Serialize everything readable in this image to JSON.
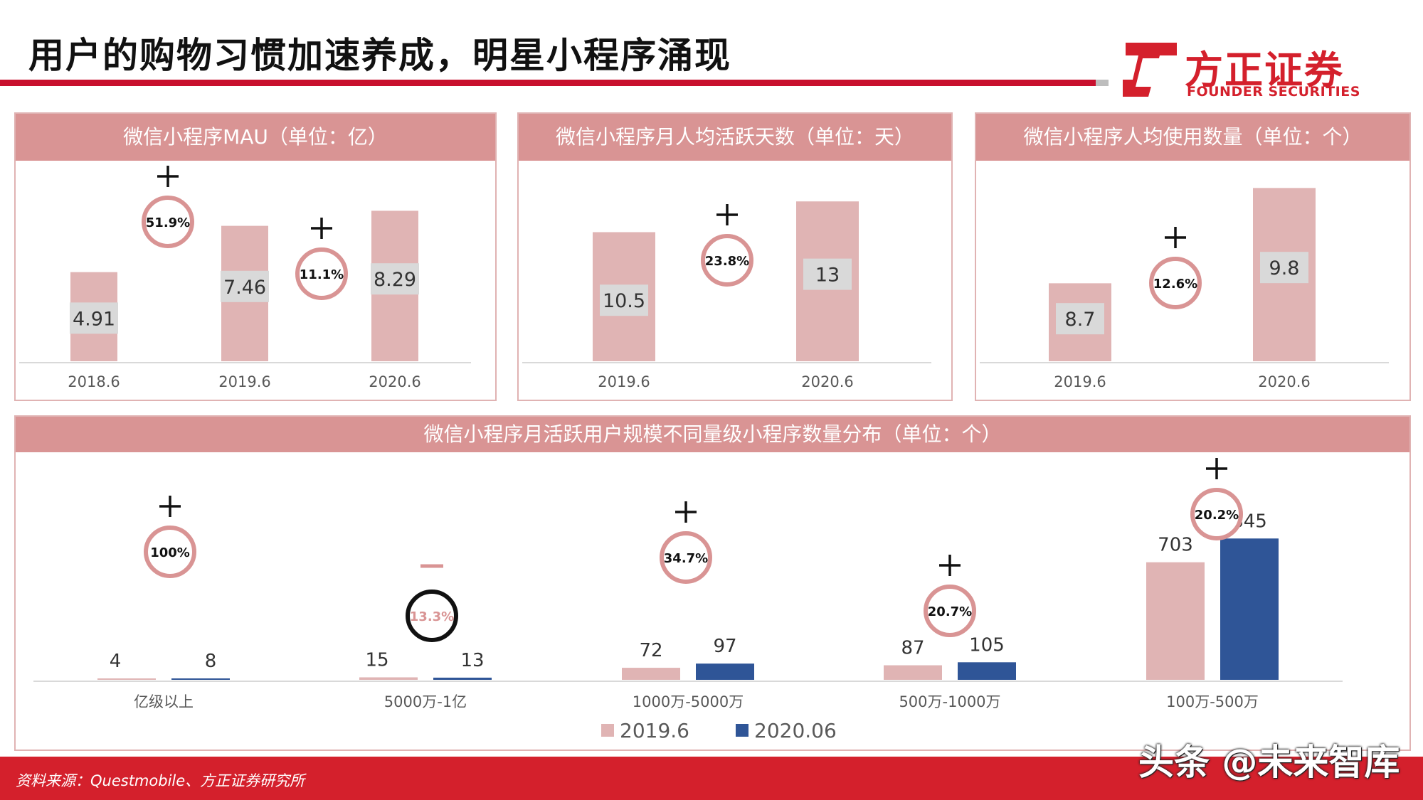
{
  "header": {
    "title": "用户的购物习惯加速养成，明星小程序涌现",
    "logo_cn": "方正证券",
    "logo_en": "FOUNDER SECURITIES"
  },
  "colors": {
    "brand_red": "#c8102e",
    "bar_2019": "#e0b4b4",
    "bar_2020": "#2f5597",
    "header_fill": "#d99494",
    "circle": "#d99494"
  },
  "chart_data": [
    {
      "type": "bar",
      "title": "微信小程序MAU（单位：亿）",
      "categories": [
        "2018.6",
        "2019.6",
        "2020.6"
      ],
      "values": [
        4.91,
        7.46,
        8.29
      ],
      "value_labels": [
        "4.91",
        "7.46",
        "8.29"
      ],
      "growth_labels": [
        {
          "sign": "+",
          "text": "51.9%"
        },
        {
          "sign": "+",
          "text": "11.1%"
        }
      ],
      "ylim": [
        0,
        10.5
      ]
    },
    {
      "type": "bar",
      "title": "微信小程序月人均活跃天数（单位：天）",
      "categories": [
        "2019.6",
        "2020.6"
      ],
      "values": [
        10.5,
        13
      ],
      "value_labels": [
        "10.5",
        "13"
      ],
      "growth_labels": [
        {
          "sign": "+",
          "text": "23.8%"
        }
      ],
      "ylim": [
        0,
        15.5
      ]
    },
    {
      "type": "bar",
      "title": "微信小程序人均使用数量（单位：个）",
      "categories": [
        "2019.6",
        "2020.6"
      ],
      "values": [
        8.7,
        9.8
      ],
      "value_labels": [
        "8.7",
        "9.8"
      ],
      "growth_labels": [
        {
          "sign": "+",
          "text": "12.6%"
        }
      ],
      "ylim": [
        7.8,
        10
      ]
    },
    {
      "type": "bar",
      "title": "微信小程序月活跃用户规模不同量级小程序数量分布（单位：个）",
      "categories": [
        "亿级以上",
        "5000万-1亿",
        "1000万-5000万",
        "500万-1000万",
        "100万-500万"
      ],
      "series": [
        {
          "name": "2019.6",
          "values": [
            4,
            15,
            72,
            87,
            703
          ]
        },
        {
          "name": "2020.06",
          "values": [
            8,
            13,
            97,
            105,
            845
          ]
        }
      ],
      "growth_labels": [
        {
          "sign": "+",
          "text": "100%"
        },
        {
          "sign": "—",
          "text": "13.3%"
        },
        {
          "sign": "+",
          "text": "34.7%"
        },
        {
          "sign": "+",
          "text": "20.7%"
        },
        {
          "sign": "+",
          "text": "20.2%"
        }
      ],
      "ylim": [
        0,
        1000
      ],
      "legend": "bottom"
    }
  ],
  "footer": {
    "source": "资料来源：Questmobile、方正证券研究所",
    "watermark": "头条 @未来智库"
  }
}
